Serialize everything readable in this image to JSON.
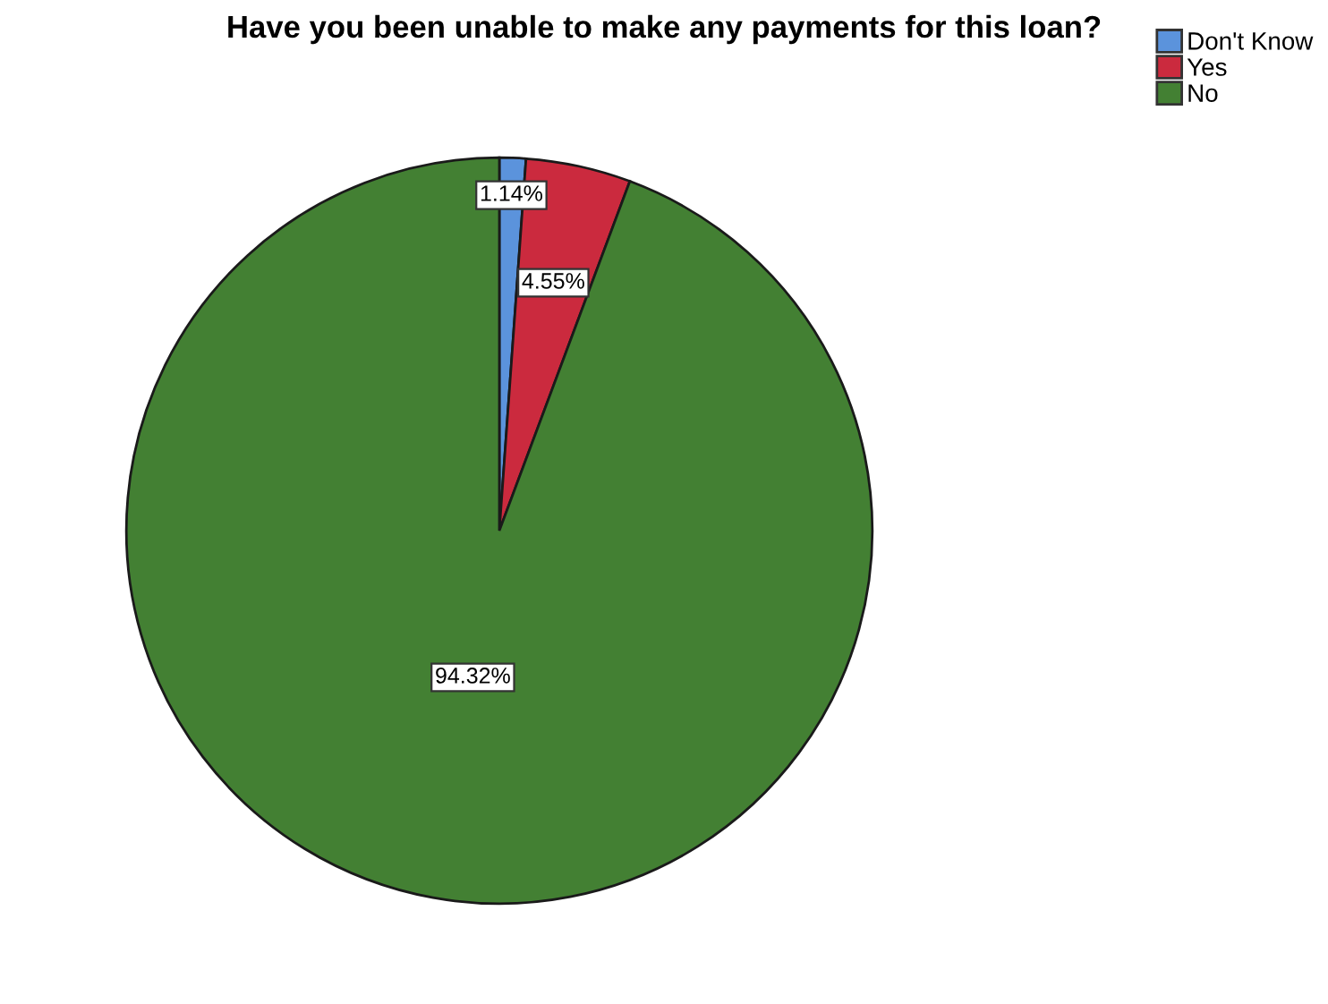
{
  "chart_data": {
    "type": "pie",
    "title": "Have you been unable to make any payments for this loan?",
    "categories": [
      "Don't Know",
      "Yes",
      "No"
    ],
    "values": [
      1.14,
      4.55,
      94.32
    ],
    "colors": [
      "#5b93dc",
      "#cb2a3e",
      "#438033"
    ],
    "value_labels": [
      "1.14%",
      "4.55%",
      "94.32%"
    ],
    "legend": "top right"
  }
}
